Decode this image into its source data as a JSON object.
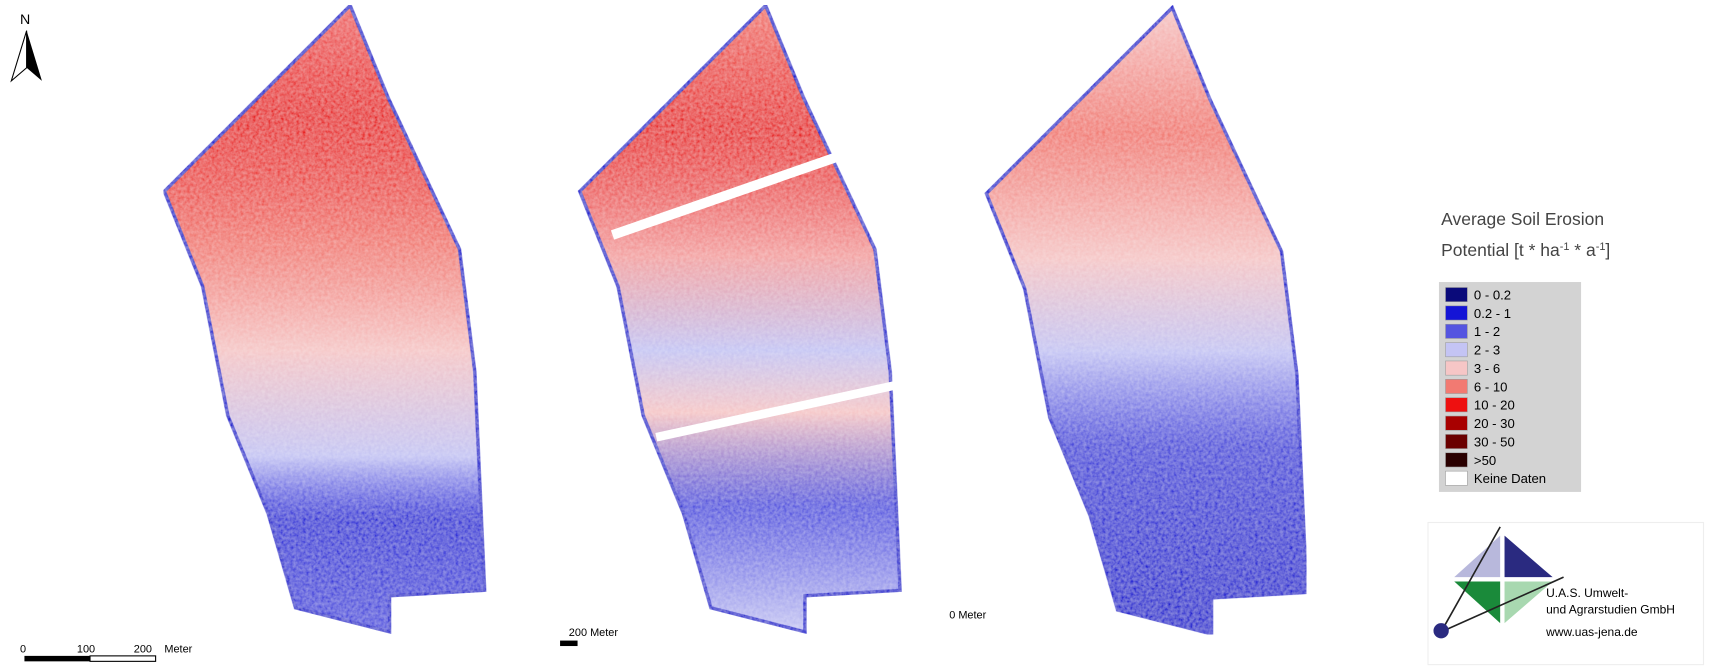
{
  "north_arrow": {
    "label": "N"
  },
  "scale_bars": {
    "left": {
      "ticks": [
        0,
        100,
        200
      ],
      "unit": "Meter"
    },
    "middle": {
      "label": "200 Meter"
    },
    "right": {
      "label": "0 Meter"
    }
  },
  "legend": {
    "title_line1": "Average Soil Erosion",
    "title_line2": [
      "Potential [t * ha",
      "-1",
      " * a",
      "-1",
      "]"
    ],
    "items": [
      {
        "label": "0 - 0.2",
        "color": "#0a0a7a"
      },
      {
        "label": "0.2 - 1",
        "color": "#1414d6"
      },
      {
        "label": "1 - 2",
        "color": "#5454e0"
      },
      {
        "label": "2 - 3",
        "color": "#c4c4f4"
      },
      {
        "label": "3 - 6",
        "color": "#f6c6c6"
      },
      {
        "label": "6 - 10",
        "color": "#f27a72"
      },
      {
        "label": "10 - 20",
        "color": "#ee1010"
      },
      {
        "label": "20 - 30",
        "color": "#a80000"
      },
      {
        "label": "30 - 50",
        "color": "#6a0000"
      },
      {
        "label": ">50",
        "color": "#2a0000"
      },
      {
        "label": "Keine Daten",
        "color": "#ffffff"
      }
    ]
  },
  "logo": {
    "line1": "U.A.S. Umwelt-",
    "line2": "und Agrarstudien GmbH",
    "url": "www.uas-jena.de"
  }
}
